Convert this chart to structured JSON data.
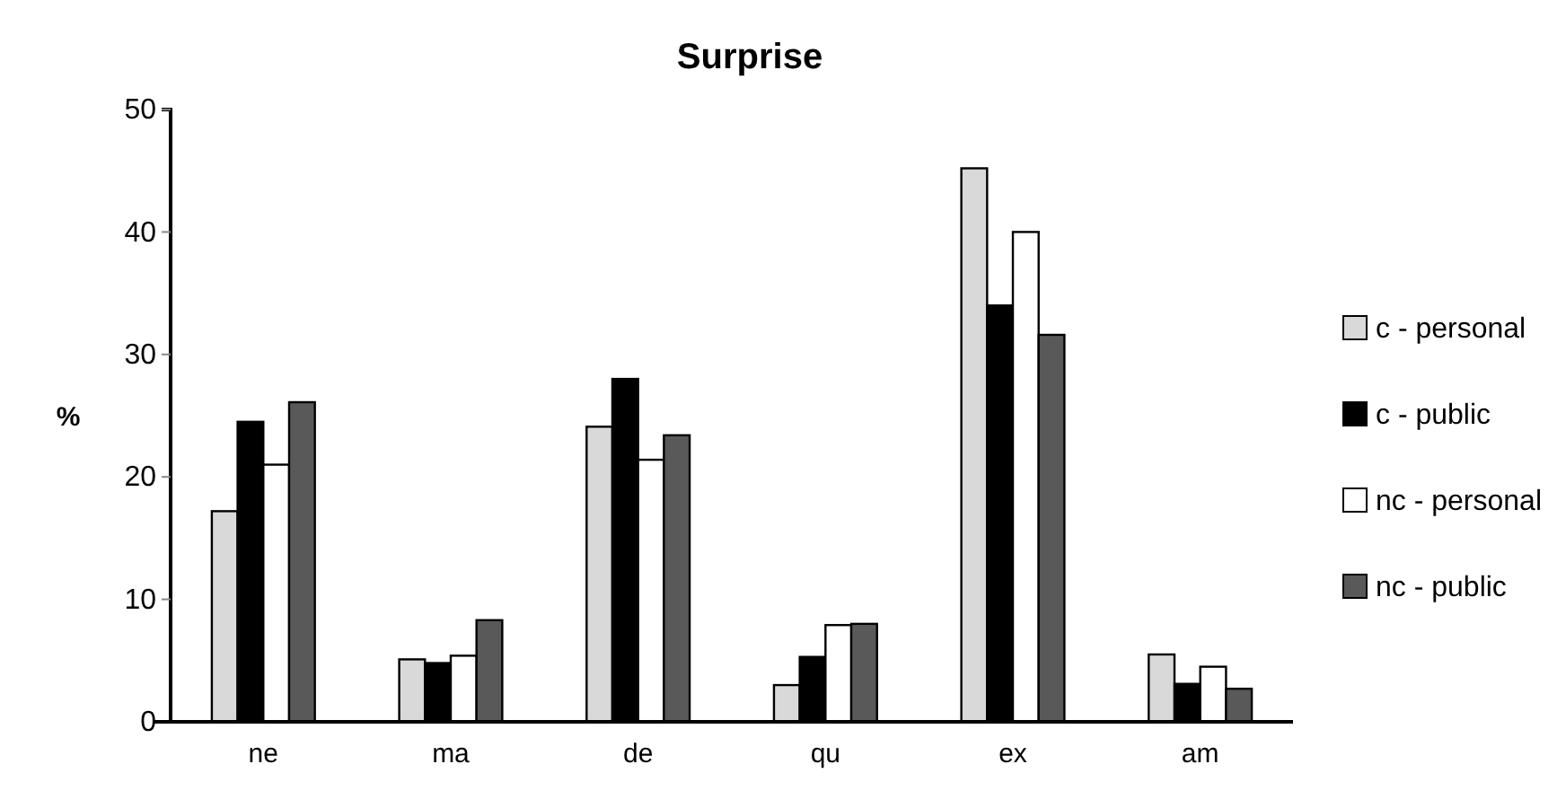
{
  "chart_data": {
    "type": "bar",
    "title": "Surprise",
    "ylabel": "%",
    "categories": [
      "ne",
      "ma",
      "de",
      "qu",
      "ex",
      "am"
    ],
    "series": [
      {
        "name": "c - personal",
        "color": "#d9d9d9",
        "values": [
          17.2,
          5.1,
          24.1,
          3,
          45.2,
          5.5
        ]
      },
      {
        "name": "c - public",
        "color": "#000000",
        "values": [
          24.5,
          4.8,
          28,
          5.3,
          34,
          3.1
        ]
      },
      {
        "name": "nc - personal",
        "color": "#ffffff",
        "values": [
          21,
          5.4,
          21.4,
          7.9,
          40,
          4.5
        ]
      },
      {
        "name": "nc - public",
        "color": "#595959",
        "values": [
          26.1,
          8.3,
          23.4,
          8,
          31.6,
          2.7
        ]
      }
    ],
    "ylim": [
      0,
      50
    ],
    "yticks": [
      0,
      10,
      20,
      30,
      40,
      50
    ],
    "legend": "right"
  }
}
